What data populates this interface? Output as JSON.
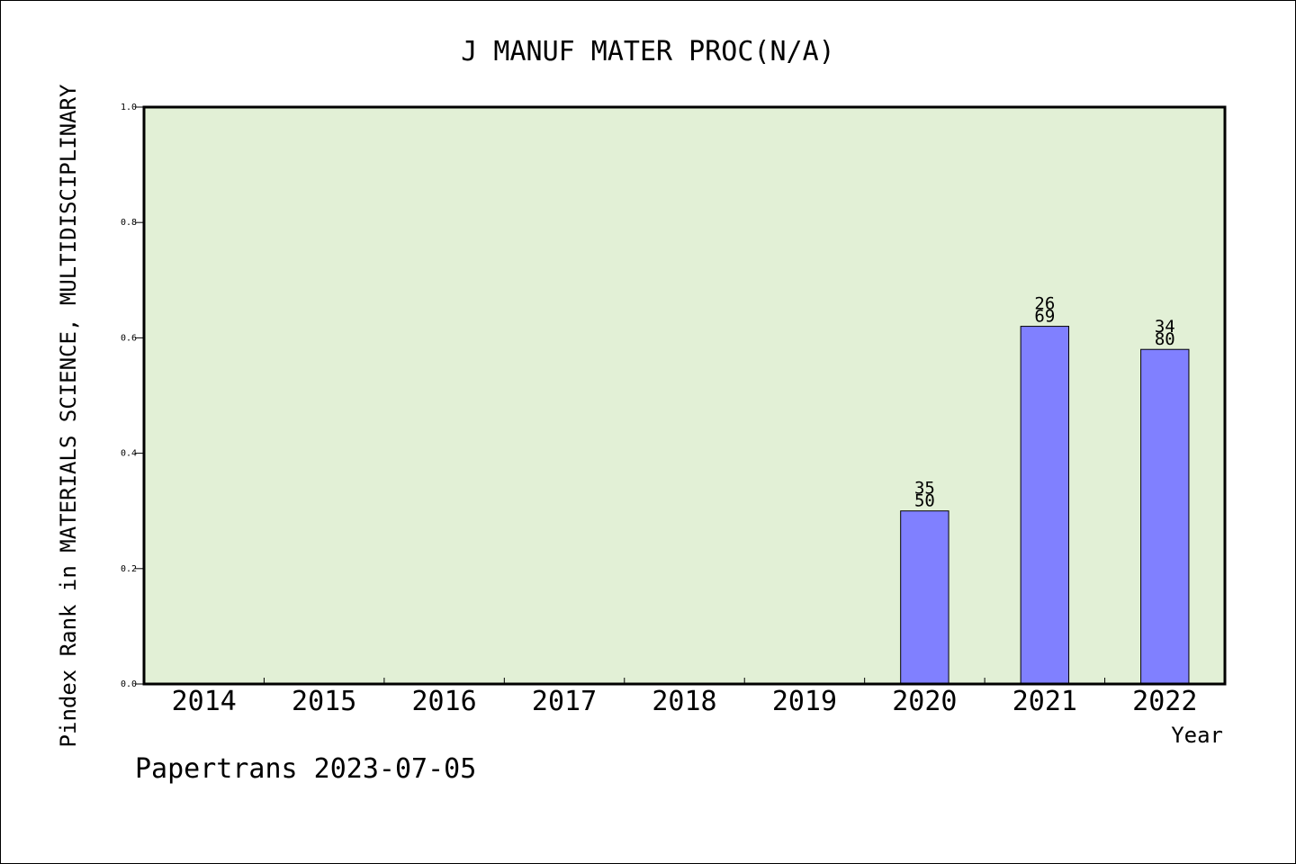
{
  "chart_data": {
    "type": "bar",
    "title": "J MANUF MATER PROC(N/A)",
    "xlabel": "Year",
    "ylabel": "Pindex Rank in MATERIALS SCIENCE, MULTIDISCIPLINARY",
    "categories": [
      "2014",
      "2015",
      "2016",
      "2017",
      "2018",
      "2019",
      "2020",
      "2021",
      "2022"
    ],
    "values": [
      null,
      null,
      null,
      null,
      null,
      null,
      0.3,
      0.62,
      0.58
    ],
    "bar_labels": [
      null,
      null,
      null,
      null,
      null,
      null,
      {
        "top": "35",
        "bottom": "50"
      },
      {
        "top": "26",
        "bottom": "69"
      },
      {
        "top": "34",
        "bottom": "80"
      }
    ],
    "ylim": [
      0,
      1.0
    ],
    "yticks": [
      "0.0",
      "0.2",
      "0.4",
      "0.6",
      "0.8",
      "1.0"
    ],
    "grid": false,
    "legend": "none",
    "colors": {
      "plot_background": "#e2f0d6",
      "bar_fill": "#8080ff",
      "bar_stroke": "#000000",
      "axis": "#000000"
    },
    "footer": "Papertrans 2023-07-05"
  }
}
